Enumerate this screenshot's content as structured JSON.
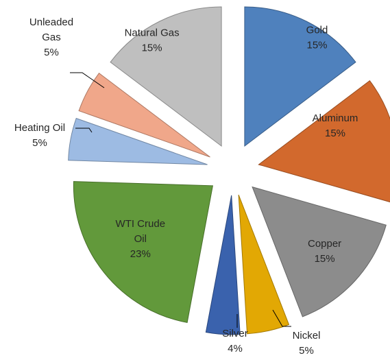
{
  "chart_data": {
    "type": "pie",
    "exploded": true,
    "unit": "%",
    "slices": [
      {
        "label": "Gold",
        "value": 15,
        "pct_label": "15%",
        "color": "#4f81bd"
      },
      {
        "label": "Aluminum",
        "value": 15,
        "pct_label": "15%",
        "color": "#d2692d"
      },
      {
        "label": "Copper",
        "value": 15,
        "pct_label": "15%",
        "color": "#8c8c8c"
      },
      {
        "label": "Nickel",
        "value": 5,
        "pct_label": "5%",
        "color": "#e2a804"
      },
      {
        "label": "Silver",
        "value": 4,
        "pct_label": "4%",
        "color": "#3a62ad"
      },
      {
        "label": "WTI Crude Oil",
        "value": 23,
        "pct_label": "23%",
        "color": "#62993b"
      },
      {
        "label": "Heating Oil",
        "value": 5,
        "pct_label": "5%",
        "color": "#9dbbe3"
      },
      {
        "label": "Unleaded Gas",
        "value": 5,
        "pct_label": "5%",
        "color": "#f0a78a"
      },
      {
        "label": "Natural Gas",
        "value": 15,
        "pct_label": "15%",
        "color": "#bfbfbf"
      }
    ]
  }
}
